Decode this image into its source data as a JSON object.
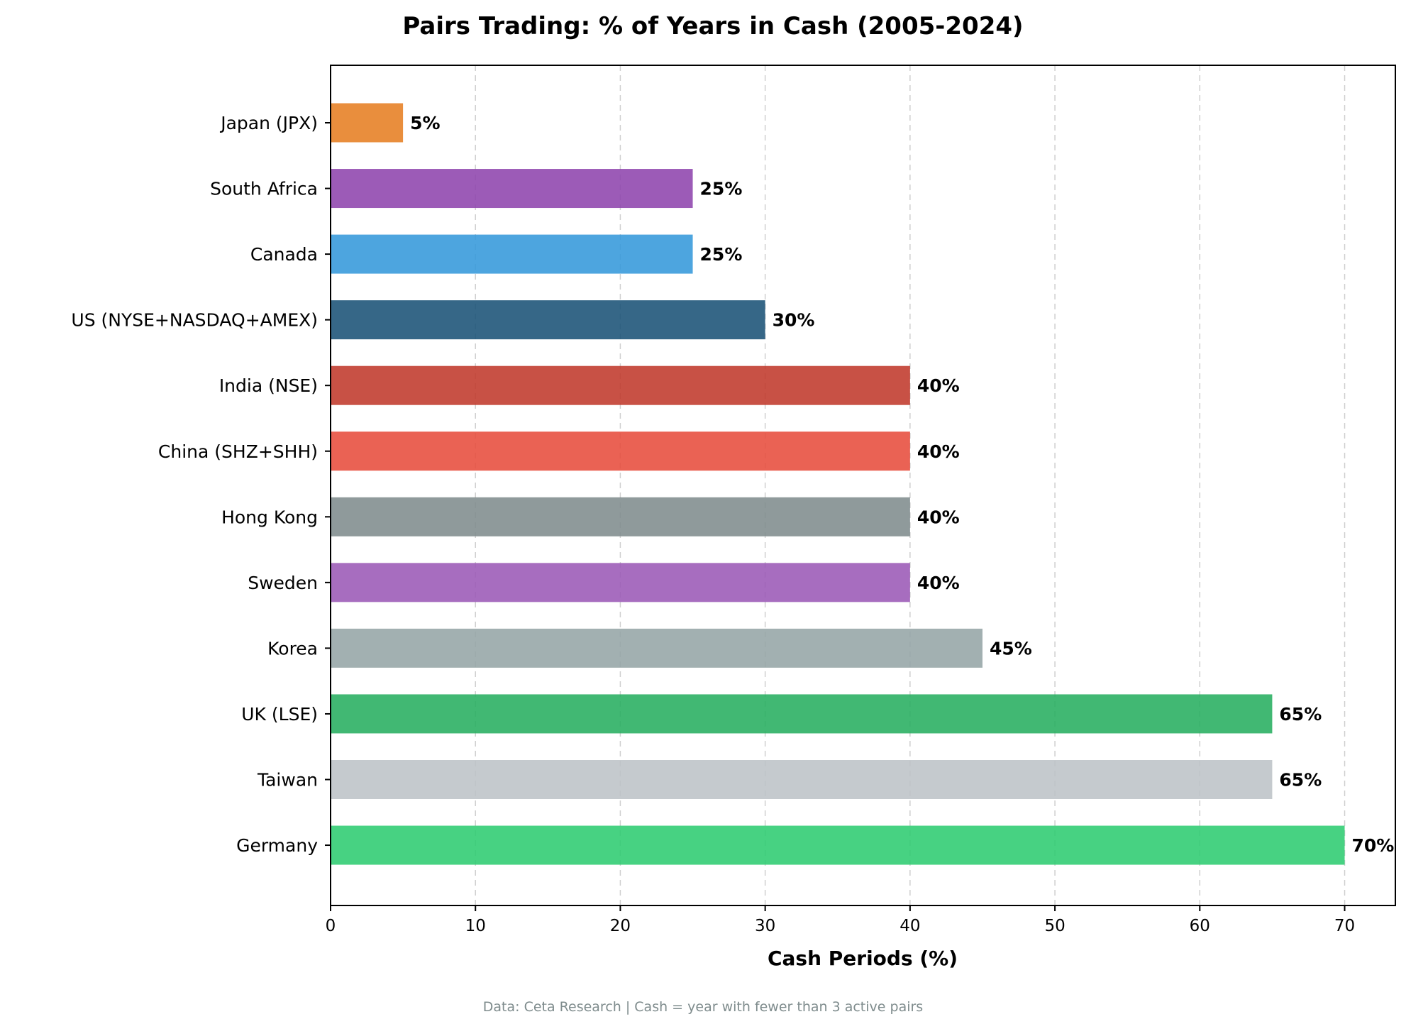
{
  "chart_data": {
    "type": "bar",
    "orientation": "horizontal",
    "title": "Pairs Trading: % of Years in Cash (2005-2024)",
    "xlabel": "Cash Periods (%)",
    "ylabel": "",
    "xlim": [
      0,
      73.5
    ],
    "xticks": [
      0,
      10,
      20,
      30,
      40,
      50,
      60,
      70
    ],
    "grid": "x-dashed",
    "footnote": "Data: Ceta Research | Cash = year with fewer than 3 active pairs",
    "categories": [
      "Japan (JPX)",
      "South Africa",
      "Canada",
      "US (NYSE+NASDAQ+AMEX)",
      "India (NSE)",
      "China (SHZ+SHH)",
      "Hong Kong",
      "Sweden",
      "Korea",
      "UK (LSE)",
      "Taiwan",
      "Germany"
    ],
    "values": [
      5,
      25,
      25,
      30,
      40,
      40,
      40,
      40,
      45,
      65,
      65,
      70
    ],
    "value_labels": [
      "5%",
      "25%",
      "25%",
      "30%",
      "40%",
      "40%",
      "40%",
      "40%",
      "45%",
      "65%",
      "65%",
      "70%"
    ],
    "colors": [
      "#e67e22",
      "#8e44ad",
      "#3498db",
      "#1a5276",
      "#c0392b",
      "#e74c3c",
      "#7f8c8d",
      "#9b59b6",
      "#95a5a6",
      "#27ae60",
      "#bdc3c7",
      "#2ecc71"
    ]
  }
}
